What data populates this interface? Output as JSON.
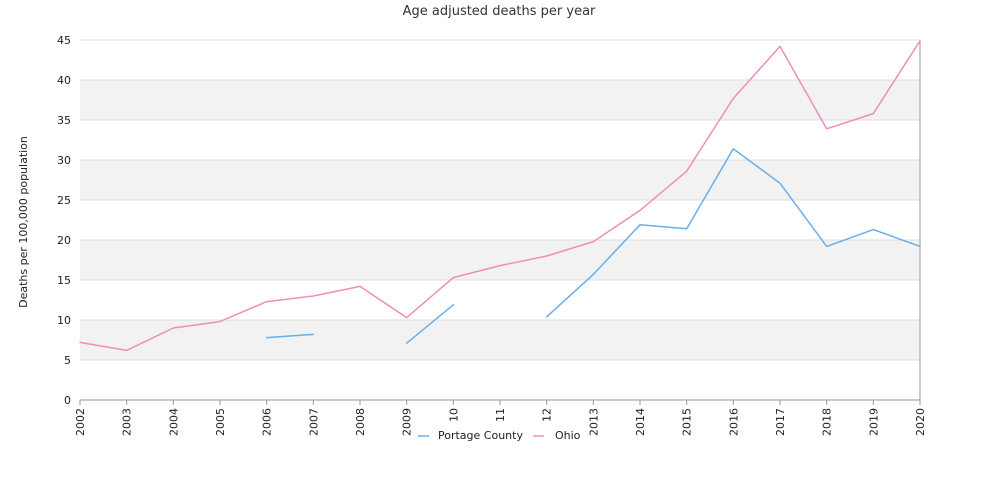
{
  "chart_data": {
    "type": "line",
    "title": "Age adjusted deaths per year",
    "xlabel": "",
    "ylabel": "Deaths per 100,000 population",
    "x": [
      "2002",
      "2003",
      "2004",
      "2005",
      "2006",
      "2007",
      "2008",
      "2009",
      "10",
      "11",
      "12",
      "2013",
      "2014",
      "2015",
      "2016",
      "2017",
      "2018",
      "2019",
      "2020"
    ],
    "ylim": [
      0,
      45
    ],
    "yticks": [
      0,
      5,
      10,
      15,
      20,
      25,
      30,
      35,
      40,
      45
    ],
    "grid": "alternating horizontal bands",
    "legend_position": "bottom-center",
    "series": [
      {
        "name": "Portage County",
        "color": "#6aaee8",
        "values": [
          null,
          null,
          null,
          null,
          7.8,
          8.2,
          null,
          7.1,
          11.9,
          null,
          10.4,
          15.7,
          21.9,
          21.4,
          31.4,
          27.1,
          19.2,
          21.3,
          19.2
        ]
      },
      {
        "name": "Ohio",
        "color": "#f08cbd",
        "values": [
          7.2,
          6.2,
          9.0,
          9.8,
          12.3,
          13.0,
          14.2,
          10.3,
          15.3,
          16.8,
          18.0,
          19.8,
          23.7,
          28.6,
          37.7,
          44.2,
          33.9,
          35.8,
          44.9
        ]
      }
    ]
  }
}
